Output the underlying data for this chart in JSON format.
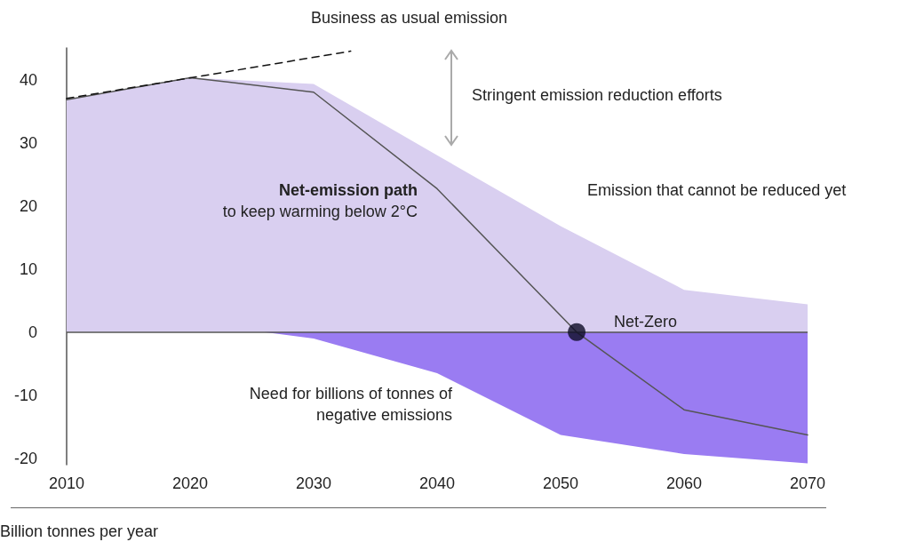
{
  "chart_data": {
    "type": "area",
    "ylabel": "Billion tonnes per year",
    "xlim": [
      2010,
      2070
    ],
    "xticks": [
      2010,
      2020,
      2030,
      2040,
      2050,
      2060,
      2070
    ],
    "ylim": [
      -21,
      45
    ],
    "yticks": [
      -20,
      -10,
      0,
      10,
      20,
      30,
      40
    ],
    "grid": false,
    "series": [
      {
        "color": "#d9cff0",
        "x": [
          2010,
          2020,
          2030,
          2040,
          2050,
          2060,
          2070
        ],
        "values": [
          36.8,
          40.3,
          39.3,
          28,
          16.8,
          6.7,
          4.4
        ]
      },
      {
        "type": "area",
        "color": "#9a7cf2",
        "x": [
          2026,
          2030,
          2040,
          2050,
          2060,
          2070
        ],
        "values": [
          0,
          -1,
          -6.5,
          -16.3,
          -19.3,
          -20.8
        ]
      },
      {
        "type": "line",
        "color": "#555555",
        "line_style": "solid",
        "x": [
          2010,
          2020,
          2030,
          2040,
          2051.3,
          2060,
          2070
        ],
        "values": [
          36.8,
          40.3,
          38,
          22.7,
          0,
          -12.3,
          -16.3
        ]
      },
      {
        "type": "line",
        "color": "#111111",
        "line_style": "dashed",
        "x": [
          2010,
          2033
        ],
        "values": [
          37,
          44.5
        ]
      },
      {
        "type": "scatter",
        "color": "#0d0b26",
        "marker": "circle",
        "x": [
          2051.3
        ],
        "values": [
          0
        ]
      }
    ],
    "ref_lines": [
      {
        "axis": "y",
        "value": 0,
        "color": "#555555"
      }
    ],
    "annotations": [
      "Business as usual emission",
      "Stringent emission reduction efforts",
      "Emission that cannot be reduced yet",
      "Net-emission path",
      "to keep warming below 2°C",
      "Need for billions of tonnes of\nnegative emissions",
      {
        "text": "Net-Zero",
        "x": 2051.3,
        "y": 0
      }
    ]
  }
}
